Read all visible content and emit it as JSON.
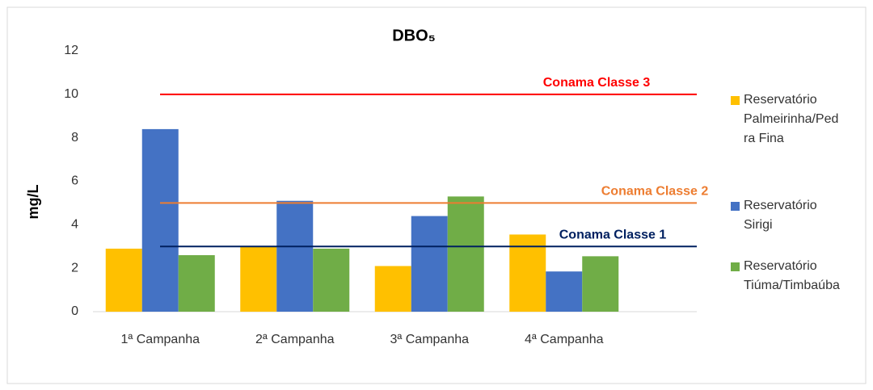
{
  "chart_data": {
    "type": "bar",
    "title": "DBO₅",
    "y_label": "mg/L",
    "categories": [
      "1ª Campanha",
      "2ª Campanha",
      "3ª Campanha",
      "4ª Campanha"
    ],
    "series": [
      {
        "name": "Reservatório Palmeirinha/Pedra Fina",
        "color": "#ffc000",
        "values": [
          2.9,
          3.0,
          2.1,
          3.55
        ]
      },
      {
        "name": "Reservatório Sirigi",
        "color": "#4472c4",
        "values": [
          8.4,
          5.1,
          4.4,
          1.85
        ]
      },
      {
        "name": "Reservatório Tiúma/Timbaúba",
        "color": "#70ad47",
        "values": [
          2.6,
          2.9,
          5.3,
          2.55
        ]
      }
    ],
    "reference_lines": [
      {
        "label": "Conama Classe 3",
        "value": 10,
        "color": "#ff0000"
      },
      {
        "label": "Conama Classe 2",
        "value": 5,
        "color": "#ed7d31"
      },
      {
        "label": "Conama Classe 1",
        "value": 3,
        "color": "#002060"
      }
    ],
    "ylim": [
      0,
      12
    ],
    "yticks": [
      0,
      2,
      4,
      6,
      8,
      10,
      12
    ],
    "grid": false,
    "legend": "right"
  }
}
